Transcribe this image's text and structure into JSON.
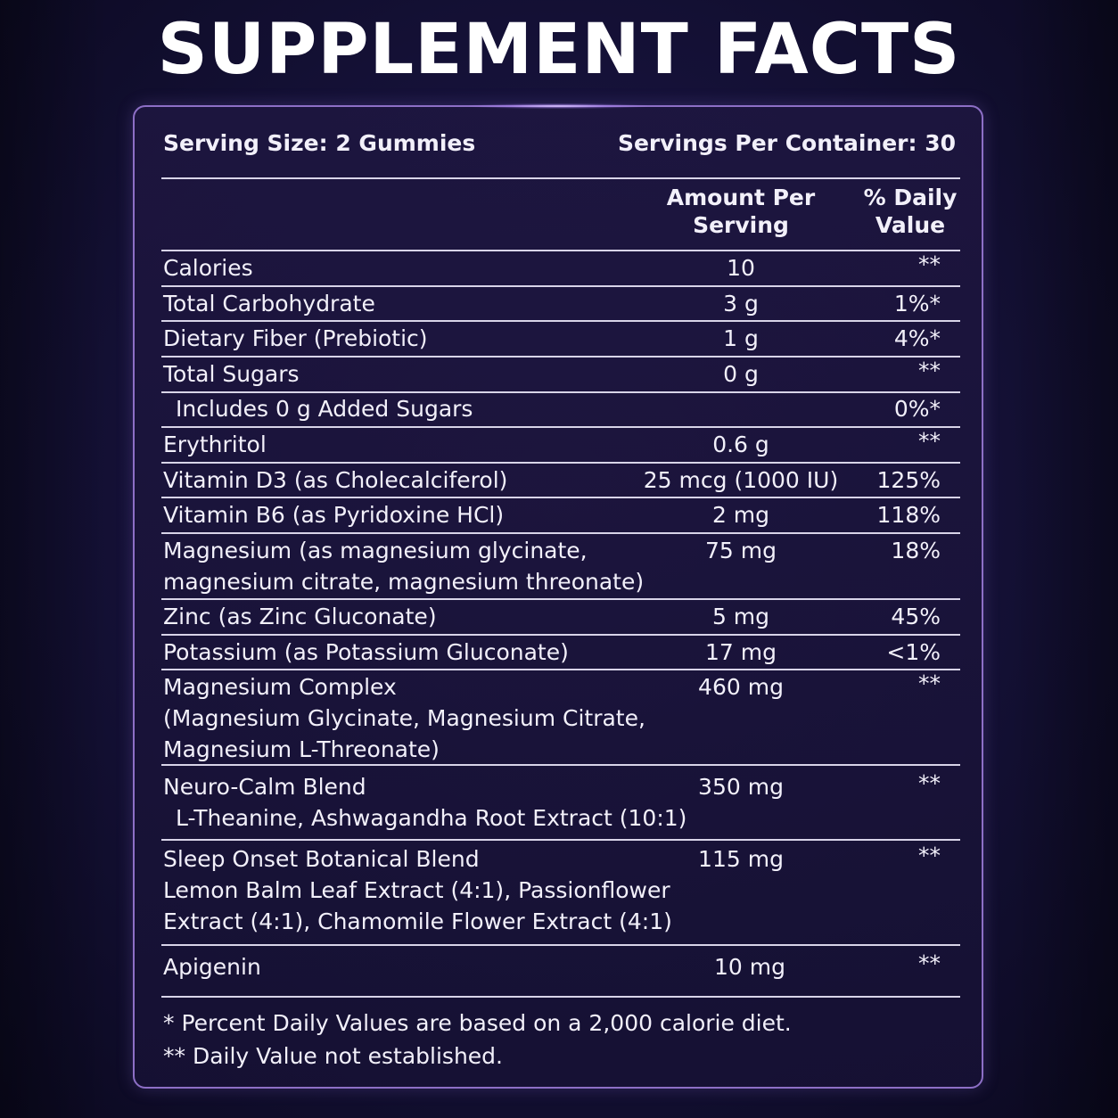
{
  "title": "SUPPLEMENT FACTS",
  "serving_size": "Serving Size: 2 Gummies",
  "servings_per_container": "Servings Per Container: 30",
  "headers": {
    "amount_line1": "Amount Per",
    "amount_line2": "Serving",
    "dv_line1": "% Daily",
    "dv_line2": "Value"
  },
  "rows": [
    {
      "name": "Calories",
      "amount": "10",
      "dv": "**"
    },
    {
      "name": "Total Carbohydrate",
      "amount": "3 g",
      "dv": "1%*"
    },
    {
      "name": "Dietary Fiber (Prebiotic)",
      "amount": "1 g",
      "dv": "4%*"
    },
    {
      "name": "Total Sugars",
      "amount": "0 g",
      "dv": "**"
    },
    {
      "name": "Includes 0 g Added Sugars",
      "amount": "",
      "dv": "0%*"
    },
    {
      "name": "Erythritol",
      "amount": "0.6 g",
      "dv": "**"
    },
    {
      "name": "Vitamin D3 (as Cholecalciferol)",
      "amount": "25 mcg (1000 IU)",
      "dv": "125%"
    },
    {
      "name": "Vitamin B6 (as Pyridoxine HCl)",
      "amount": "2 mg",
      "dv": "118%"
    },
    {
      "name_line1": "Magnesium (as magnesium glycinate,",
      "name_line2": "magnesium citrate, magnesium threonate)",
      "amount": "75 mg",
      "dv": "18%"
    },
    {
      "name": "Zinc (as Zinc Gluconate)",
      "amount": "5 mg",
      "dv": "45%"
    },
    {
      "name": "Potassium (as Potassium Gluconate)",
      "amount": "17 mg",
      "dv": "<1%"
    },
    {
      "name_line1": "Magnesium Complex",
      "name_line2": "(Magnesium Glycinate, Magnesium Citrate,",
      "name_line3": "Magnesium L-Threonate)",
      "amount": "460 mg",
      "dv": "**"
    },
    {
      "name_line1": "Neuro-Calm Blend",
      "name_line2": "L-Theanine, Ashwagandha Root Extract (10:1)",
      "amount": "350 mg",
      "dv": "**"
    },
    {
      "name_line1": "Sleep Onset Botanical Blend",
      "name_line2": "Lemon Balm Leaf Extract (4:1), Passionflower",
      "name_line3": "Extract (4:1), Chamomile Flower Extract (4:1)",
      "amount": "115 mg",
      "dv": "**"
    },
    {
      "name": "Apigenin",
      "amount": "10 mg",
      "dv": "**"
    }
  ],
  "footnotes": {
    "one": "* Percent Daily Values are based on a 2,000 calorie diet.",
    "two": "** Daily Value not established."
  }
}
